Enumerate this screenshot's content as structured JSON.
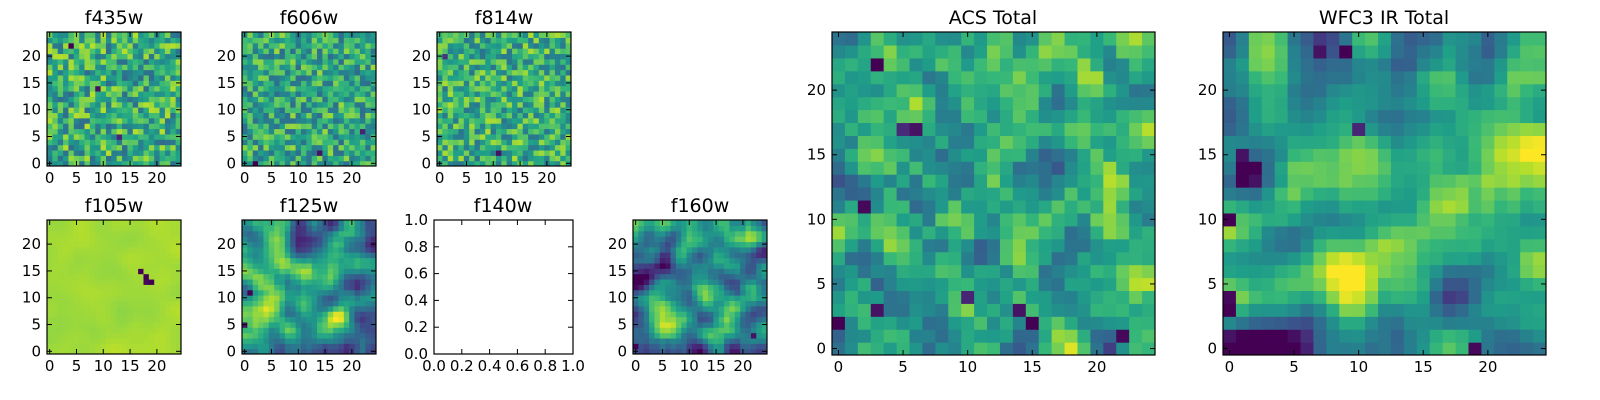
{
  "colors": {
    "colormap": "viridis",
    "background": "#ffffff",
    "frame": "#000000"
  },
  "chart_data": [
    {
      "type": "heatmap",
      "title": "f435w",
      "xlim": [
        0,
        24
      ],
      "ylim": [
        0,
        24
      ],
      "xticks": [
        {
          "v": 0,
          "label": "0"
        },
        {
          "v": 5,
          "label": "5"
        },
        {
          "v": 10,
          "label": "10"
        },
        {
          "v": 15,
          "label": "15"
        },
        {
          "v": 20,
          "label": "20"
        }
      ],
      "yticks": [
        {
          "v": 0,
          "label": "0"
        },
        {
          "v": 5,
          "label": "5"
        },
        {
          "v": 10,
          "label": "10"
        },
        {
          "v": 15,
          "label": "15"
        },
        {
          "v": 20,
          "label": "20"
        }
      ],
      "grid": false,
      "pattern": "noise",
      "mean": 0.62,
      "spread": 0.55,
      "seed": 11,
      "spots": [
        {
          "x": 4,
          "y": 22,
          "v": 0.0
        },
        {
          "x": 9,
          "y": 14,
          "v": 0.05
        },
        {
          "x": 13,
          "y": 5,
          "v": 0.1
        }
      ]
    },
    {
      "type": "heatmap",
      "title": "f606w",
      "xlim": [
        0,
        24
      ],
      "ylim": [
        0,
        24
      ],
      "xticks": [
        {
          "v": 0,
          "label": "0"
        },
        {
          "v": 5,
          "label": "5"
        },
        {
          "v": 10,
          "label": "10"
        },
        {
          "v": 15,
          "label": "15"
        },
        {
          "v": 20,
          "label": "20"
        }
      ],
      "yticks": [
        {
          "v": 0,
          "label": "0"
        },
        {
          "v": 5,
          "label": "5"
        },
        {
          "v": 10,
          "label": "10"
        },
        {
          "v": 15,
          "label": "15"
        },
        {
          "v": 20,
          "label": "20"
        }
      ],
      "grid": false,
      "pattern": "noise",
      "mean": 0.6,
      "spread": 0.5,
      "seed": 23,
      "spots": [
        {
          "x": 2,
          "y": 0,
          "v": 0.0
        },
        {
          "x": 14,
          "y": 2,
          "v": 0.05
        },
        {
          "x": 22,
          "y": 6,
          "v": 0.1
        }
      ]
    },
    {
      "type": "heatmap",
      "title": "f814w",
      "xlim": [
        0,
        24
      ],
      "ylim": [
        0,
        24
      ],
      "xticks": [
        {
          "v": 0,
          "label": "0"
        },
        {
          "v": 5,
          "label": "5"
        },
        {
          "v": 10,
          "label": "10"
        },
        {
          "v": 15,
          "label": "15"
        },
        {
          "v": 20,
          "label": "20"
        }
      ],
      "yticks": [
        {
          "v": 0,
          "label": "0"
        },
        {
          "v": 5,
          "label": "5"
        },
        {
          "v": 10,
          "label": "10"
        },
        {
          "v": 15,
          "label": "15"
        },
        {
          "v": 20,
          "label": "20"
        }
      ],
      "grid": false,
      "pattern": "noise",
      "mean": 0.63,
      "spread": 0.5,
      "seed": 37,
      "spots": [
        {
          "x": 11,
          "y": 2,
          "v": 0.05
        },
        {
          "x": 1,
          "y": 20,
          "v": 0.15
        }
      ]
    },
    {
      "type": "heatmap",
      "title": "f105w",
      "xlim": [
        0,
        24
      ],
      "ylim": [
        0,
        24
      ],
      "xticks": [
        {
          "v": 0,
          "label": "0"
        },
        {
          "v": 5,
          "label": "5"
        },
        {
          "v": 10,
          "label": "10"
        },
        {
          "v": 15,
          "label": "15"
        },
        {
          "v": 20,
          "label": "20"
        }
      ],
      "yticks": [
        {
          "v": 0,
          "label": "0"
        },
        {
          "v": 5,
          "label": "5"
        },
        {
          "v": 10,
          "label": "10"
        },
        {
          "v": 15,
          "label": "15"
        },
        {
          "v": 20,
          "label": "20"
        }
      ],
      "grid": false,
      "pattern": "flat",
      "mean": 0.86,
      "spread": 0.08,
      "seed": 41,
      "spots": [
        {
          "x": 17,
          "y": 15,
          "v": 0.0
        },
        {
          "x": 18,
          "y": 14,
          "v": 0.0
        },
        {
          "x": 19,
          "y": 13,
          "v": 0.0
        },
        {
          "x": 18,
          "y": 13,
          "v": 0.02
        }
      ]
    },
    {
      "type": "heatmap",
      "title": "f125w",
      "xlim": [
        0,
        24
      ],
      "ylim": [
        0,
        24
      ],
      "xticks": [
        {
          "v": 0,
          "label": "0"
        },
        {
          "v": 5,
          "label": "5"
        },
        {
          "v": 10,
          "label": "10"
        },
        {
          "v": 15,
          "label": "15"
        },
        {
          "v": 20,
          "label": "20"
        }
      ],
      "yticks": [
        {
          "v": 0,
          "label": "0"
        },
        {
          "v": 5,
          "label": "5"
        },
        {
          "v": 10,
          "label": "10"
        },
        {
          "v": 15,
          "label": "15"
        },
        {
          "v": 20,
          "label": "20"
        }
      ],
      "grid": false,
      "pattern": "smooth",
      "mean": 0.55,
      "spread": 0.7,
      "seed": 53,
      "spots": [
        {
          "x": 1,
          "y": 11,
          "v": 0.0
        },
        {
          "x": 0,
          "y": 5,
          "v": 0.05
        }
      ]
    },
    {
      "type": "empty",
      "title": "f140w",
      "xlim": [
        0,
        1
      ],
      "ylim": [
        0,
        1
      ],
      "xticks": [
        {
          "v": 0,
          "label": "0.0"
        },
        {
          "v": 0.2,
          "label": "0.2"
        },
        {
          "v": 0.4,
          "label": "0.4"
        },
        {
          "v": 0.6,
          "label": "0.6"
        },
        {
          "v": 0.8,
          "label": "0.8"
        },
        {
          "v": 1.0,
          "label": "1.0"
        }
      ],
      "yticks": [
        {
          "v": 0,
          "label": "0.0"
        },
        {
          "v": 0.2,
          "label": "0.2"
        },
        {
          "v": 0.4,
          "label": "0.4"
        },
        {
          "v": 0.6,
          "label": "0.6"
        },
        {
          "v": 0.8,
          "label": "0.8"
        },
        {
          "v": 1.0,
          "label": "1.0"
        }
      ],
      "grid": false
    },
    {
      "type": "heatmap",
      "title": "f160w",
      "xlim": [
        0,
        24
      ],
      "ylim": [
        0,
        24
      ],
      "xticks": [
        {
          "v": 0,
          "label": "0"
        },
        {
          "v": 5,
          "label": "5"
        },
        {
          "v": 10,
          "label": "10"
        },
        {
          "v": 15,
          "label": "15"
        },
        {
          "v": 20,
          "label": "20"
        }
      ],
      "yticks": [
        {
          "v": 0,
          "label": "0"
        },
        {
          "v": 5,
          "label": "5"
        },
        {
          "v": 10,
          "label": "10"
        },
        {
          "v": 15,
          "label": "15"
        },
        {
          "v": 20,
          "label": "20"
        }
      ],
      "grid": false,
      "pattern": "smooth",
      "mean": 0.5,
      "spread": 0.8,
      "seed": 67,
      "spots": [
        {
          "x": 0,
          "y": 1,
          "v": 0.0
        },
        {
          "x": 22,
          "y": 3,
          "v": 0.05
        }
      ]
    },
    {
      "type": "heatmap",
      "title": "ACS Total",
      "xlim": [
        0,
        24
      ],
      "ylim": [
        0,
        24
      ],
      "xticks": [
        {
          "v": 0,
          "label": "0"
        },
        {
          "v": 5,
          "label": "5"
        },
        {
          "v": 10,
          "label": "10"
        },
        {
          "v": 15,
          "label": "15"
        },
        {
          "v": 20,
          "label": "20"
        }
      ],
      "yticks": [
        {
          "v": 0,
          "label": "0"
        },
        {
          "v": 5,
          "label": "5"
        },
        {
          "v": 10,
          "label": "10"
        },
        {
          "v": 15,
          "label": "15"
        },
        {
          "v": 20,
          "label": "20"
        }
      ],
      "grid": false,
      "pattern": "blend",
      "mean": 0.6,
      "spread": 0.5,
      "seed": 79,
      "spots": [
        {
          "x": 3,
          "y": 22,
          "v": 0.0
        },
        {
          "x": 5,
          "y": 17,
          "v": 0.12
        },
        {
          "x": 6,
          "y": 17,
          "v": 0.05
        },
        {
          "x": 2,
          "y": 11,
          "v": 0.02
        },
        {
          "x": 10,
          "y": 4,
          "v": 0.1
        },
        {
          "x": 14,
          "y": 3,
          "v": 0.05
        },
        {
          "x": 15,
          "y": 2,
          "v": 0.0
        },
        {
          "x": 22,
          "y": 1,
          "v": 0.02
        },
        {
          "x": 0,
          "y": 2,
          "v": 0.0
        },
        {
          "x": 3,
          "y": 3,
          "v": 0.05
        }
      ]
    },
    {
      "type": "heatmap",
      "title": "WFC3 IR Total",
      "xlim": [
        0,
        24
      ],
      "ylim": [
        0,
        24
      ],
      "xticks": [
        {
          "v": 0,
          "label": "0"
        },
        {
          "v": 5,
          "label": "5"
        },
        {
          "v": 10,
          "label": "10"
        },
        {
          "v": 15,
          "label": "15"
        },
        {
          "v": 20,
          "label": "20"
        }
      ],
      "yticks": [
        {
          "v": 0,
          "label": "0"
        },
        {
          "v": 5,
          "label": "5"
        },
        {
          "v": 10,
          "label": "10"
        },
        {
          "v": 15,
          "label": "15"
        },
        {
          "v": 20,
          "label": "20"
        }
      ],
      "grid": false,
      "pattern": "smooth",
      "mean": 0.55,
      "spread": 0.75,
      "seed": 97,
      "spots": [
        {
          "x": 1,
          "y": 14,
          "v": 0.0
        },
        {
          "x": 2,
          "y": 14,
          "v": 0.0
        },
        {
          "x": 1,
          "y": 13,
          "v": 0.0
        },
        {
          "x": 2,
          "y": 13,
          "v": 0.05
        },
        {
          "x": 1,
          "y": 15,
          "v": 0.05
        },
        {
          "x": 0,
          "y": 3,
          "v": 0.0
        },
        {
          "x": 0,
          "y": 4,
          "v": 0.02
        },
        {
          "x": 9,
          "y": 23,
          "v": 0.0
        },
        {
          "x": 7,
          "y": 23,
          "v": 0.05
        },
        {
          "x": 10,
          "y": 17,
          "v": 0.1
        },
        {
          "x": 19,
          "y": 0,
          "v": 0.02
        },
        {
          "x": 0,
          "y": 10,
          "v": 0.0
        }
      ]
    }
  ]
}
